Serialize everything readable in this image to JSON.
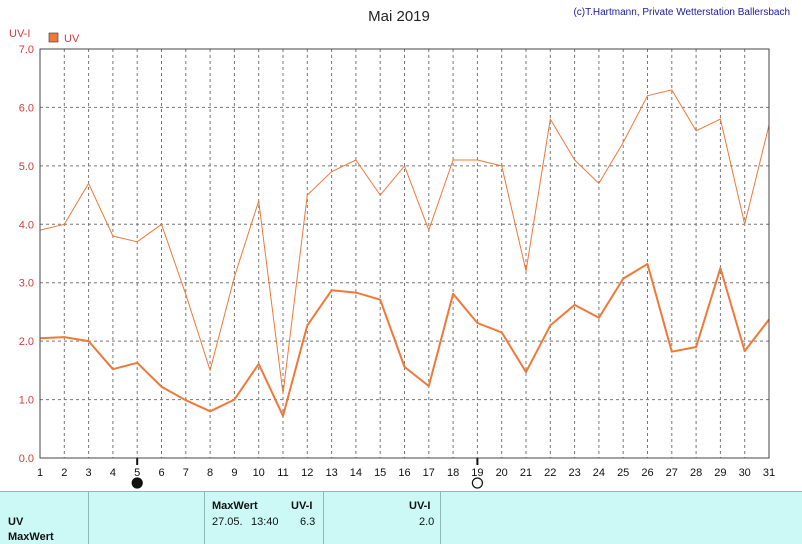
{
  "chart_data": {
    "type": "line",
    "title": "Mai 2019",
    "credit": "(c)T.Hartmann, Private Wetterstation Ballersbach",
    "ylabel": "UV-I",
    "ylim": [
      0,
      7
    ],
    "yticks": [
      "0.0",
      "1.0",
      "2.0",
      "3.0",
      "4.0",
      "5.0",
      "6.0",
      "7.0"
    ],
    "x": [
      1,
      2,
      3,
      4,
      5,
      6,
      7,
      8,
      9,
      10,
      11,
      12,
      13,
      14,
      15,
      16,
      17,
      18,
      19,
      20,
      21,
      22,
      23,
      24,
      25,
      26,
      27,
      28,
      29,
      30,
      31
    ],
    "xlim": [
      1,
      31
    ],
    "grid": true,
    "legend": "top-left",
    "series": [
      {
        "name": "",
        "color": "#f07838",
        "values": [
          3.9,
          4.0,
          4.7,
          3.8,
          3.7,
          4.0,
          2.8,
          1.5,
          3.1,
          4.4,
          1.1,
          4.5,
          4.9,
          5.1,
          4.5,
          5.0,
          3.9,
          5.1,
          5.1,
          5.0,
          3.2,
          5.8,
          5.1,
          4.7,
          5.4,
          6.2,
          6.3,
          5.6,
          5.8,
          4.0,
          5.7
        ]
      },
      {
        "name": "UV",
        "color": "#f07838",
        "values": [
          2.05,
          2.07,
          2.0,
          1.52,
          1.63,
          1.22,
          0.99,
          0.8,
          1.0,
          1.61,
          0.72,
          2.27,
          2.87,
          2.83,
          2.71,
          1.56,
          1.23,
          2.81,
          2.31,
          2.15,
          1.47,
          2.27,
          2.62,
          2.4,
          3.07,
          3.32,
          1.82,
          1.9,
          3.25,
          1.83,
          2.37
        ]
      }
    ],
    "markers": [
      {
        "x": 5,
        "kind": "new-moon"
      },
      {
        "x": 19,
        "kind": "full-moon"
      }
    ],
    "colors": {
      "axis_text": "#d23c3c",
      "grid": "#777777",
      "table_bg": "#ccf9f6"
    }
  },
  "table": {
    "row1": "UV",
    "row2": "MaxWert",
    "h_maxwert": "MaxWert",
    "h_uvi": "UV-I",
    "h_uvi2": "UV-I",
    "date": "27.05.",
    "time": "13:40",
    "max_value": "6.3",
    "avg_value": "2.0"
  }
}
